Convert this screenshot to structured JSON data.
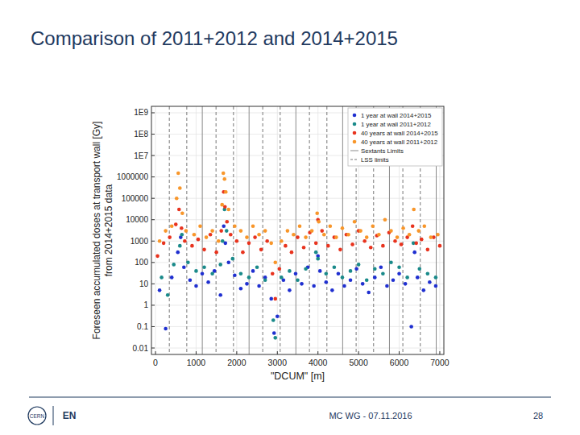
{
  "slide": {
    "title": "Comparison of 2011+2012 and 2014+2015",
    "footer": {
      "text": "MC WG - 07.11.2016",
      "page": "28",
      "logo_left": "CERN",
      "logo_right": "EN"
    }
  },
  "chart_data": {
    "type": "scatter",
    "xlabel": "\"DCUM\" [m]",
    "ylabel": [
      "Foreseen accumulated doses at transport wall [Gy]",
      "from 2014+2015 data"
    ],
    "log": "y",
    "grid": true,
    "legend": "top-right",
    "marker": "circle",
    "xlim": [
      -100,
      7100
    ],
    "xticks": [
      0,
      1000,
      2000,
      3000,
      4000,
      5000,
      6000,
      7000
    ],
    "ylim": [
      0.005,
      2000000000
    ],
    "yticks": [
      {
        "value": 1000000000,
        "label": "1E9"
      },
      {
        "value": 100000000,
        "label": "1E8"
      },
      {
        "value": 10000000,
        "label": "1E7"
      },
      1000000,
      100000,
      10000,
      1000,
      100,
      10,
      1,
      0.1,
      0.01
    ],
    "sextant_limits_label": "Sextants Limits",
    "sextant_limits": [
      1152,
      2304,
      3456,
      4608,
      5760,
      6912
    ],
    "lss_limits_label": "LSS limits",
    "lss_limits": [
      340,
      770,
      1490,
      1920,
      2640,
      3070,
      3790,
      4220,
      4940,
      5370,
      6090,
      6520
    ],
    "series": [
      {
        "name": "1 year at wall 2014+2015",
        "color": "#1f2fd0",
        "x": [
          100,
          250,
          400,
          550,
          620,
          700,
          850,
          1000,
          1150,
          1300,
          1450,
          1600,
          1680,
          1720,
          1800,
          1950,
          2100,
          2250,
          2400,
          2550,
          2700,
          2850,
          2920,
          3000,
          3150,
          3300,
          3450,
          3600,
          3750,
          3900,
          4000,
          4050,
          4200,
          4350,
          4500,
          4650,
          4800,
          4950,
          5100,
          5250,
          5400,
          5550,
          5700,
          5850,
          6000,
          6150,
          6300,
          6380,
          6450,
          6600,
          6750,
          6900
        ],
        "values": [
          5,
          0.08,
          20,
          300,
          1500,
          60,
          15,
          8,
          30,
          12,
          40,
          3,
          5000,
          800,
          100,
          25,
          6,
          10,
          40,
          8,
          20,
          2,
          0.05,
          0.3,
          15,
          5,
          30,
          10,
          60,
          8,
          200,
          40,
          12,
          5,
          30,
          8,
          15,
          50,
          10,
          4,
          20,
          60,
          8,
          15,
          30,
          10,
          0.1,
          300,
          20,
          5,
          12,
          8
        ]
      },
      {
        "name": "1 year at wall 2011+2012",
        "color": "#1a8a8a",
        "x": [
          150,
          300,
          450,
          600,
          650,
          800,
          1000,
          1200,
          1400,
          1600,
          1650,
          1700,
          1750,
          1900,
          2100,
          2300,
          2500,
          2700,
          2900,
          2950,
          3100,
          3300,
          3500,
          3700,
          3950,
          4000,
          4200,
          4400,
          4600,
          4800,
          5000,
          5200,
          5400,
          5600,
          5800,
          6000,
          6200,
          6350,
          6500,
          6700,
          6900
        ],
        "values": [
          20,
          3,
          80,
          600,
          2000,
          100,
          40,
          60,
          30,
          80,
          1000,
          30000,
          3000,
          150,
          30,
          20,
          60,
          15,
          0.2,
          0.03,
          20,
          40,
          15,
          50,
          300,
          150,
          30,
          60,
          20,
          40,
          80,
          15,
          50,
          30,
          100,
          60,
          20,
          800,
          50,
          30,
          20
        ]
      },
      {
        "name": "40 years at wall 2014+2015",
        "color": "#e8331e",
        "x": [
          50,
          200,
          350,
          500,
          580,
          640,
          720,
          900,
          1050,
          1200,
          1350,
          1500,
          1620,
          1680,
          1710,
          1760,
          1850,
          2000,
          2150,
          2300,
          2450,
          2600,
          2750,
          2880,
          2950,
          3050,
          3200,
          3350,
          3500,
          3650,
          3800,
          3950,
          4000,
          4100,
          4250,
          4400,
          4550,
          4700,
          4850,
          5000,
          5150,
          5300,
          5450,
          5600,
          5750,
          5900,
          6050,
          6200,
          6330,
          6420,
          6550,
          6700,
          6850,
          7000
        ],
        "values": [
          200,
          800,
          1500,
          6000,
          30000,
          4000,
          1000,
          600,
          1200,
          400,
          2000,
          300,
          3000,
          200000,
          40000,
          8000,
          2000,
          1000,
          300,
          800,
          1500,
          400,
          1000,
          30,
          2,
          50,
          600,
          300,
          1500,
          500,
          2500,
          800,
          10000,
          3000,
          600,
          1500,
          400,
          2000,
          700,
          3000,
          1000,
          500,
          1800,
          600,
          2500,
          1000,
          700,
          1500,
          5000,
          800,
          1200,
          400,
          1500,
          600
        ]
      },
      {
        "name": "40 years at wall 2011+2012",
        "color": "#f8962a",
        "x": [
          100,
          250,
          400,
          520,
          560,
          600,
          660,
          750,
          950,
          1100,
          1250,
          1400,
          1550,
          1640,
          1670,
          1700,
          1730,
          1800,
          1950,
          2100,
          2250,
          2400,
          2550,
          2700,
          2850,
          2950,
          3100,
          3250,
          3400,
          3550,
          3700,
          3850,
          3980,
          4020,
          4150,
          4300,
          4450,
          4600,
          4750,
          4900,
          5050,
          5200,
          5350,
          5500,
          5650,
          5800,
          5950,
          6100,
          6250,
          6360,
          6480,
          6620,
          6780,
          6950
        ],
        "values": [
          1000,
          3000,
          5000,
          100000,
          1500000,
          300000,
          20000,
          3000,
          2000,
          5000,
          1500,
          3000,
          1000,
          50000,
          1500000,
          800000,
          200000,
          30000,
          5000,
          3000,
          1500,
          5000,
          2000,
          3000,
          800,
          100,
          1000,
          3000,
          2000,
          5000,
          1500,
          3000,
          20000,
          8000,
          2000,
          5000,
          1500,
          4000,
          2000,
          8000,
          3000,
          1500,
          5000,
          2000,
          10000,
          3000,
          1500,
          4000,
          2000,
          30000,
          3000,
          5000,
          1500,
          2000
        ]
      }
    ]
  }
}
